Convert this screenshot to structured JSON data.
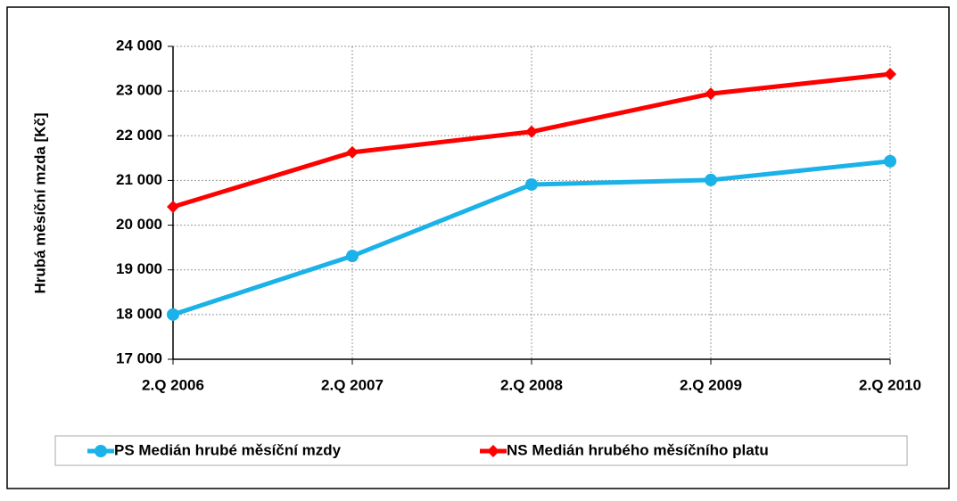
{
  "chart_data": {
    "type": "line",
    "y_label": "Hrubá měsíční mzda [Kč]",
    "categories": [
      "2.Q 2006",
      "2.Q 2007",
      "2.Q 2008",
      "2.Q 2009",
      "2.Q 2010"
    ],
    "series": [
      {
        "name": "PS Medián hrubé měsíční mzdy",
        "color": "#1ab2e8",
        "marker": "circle",
        "values": [
          18000,
          19310,
          20910,
          21010,
          21430
        ]
      },
      {
        "name": "NS Medián hrubého měsíčního platu",
        "color": "#ff0000",
        "marker": "diamond",
        "values": [
          20410,
          21630,
          22090,
          22940,
          23380
        ]
      }
    ],
    "ylim": [
      17000,
      24000
    ],
    "yticks": [
      {
        "value": 17000,
        "label": "17 000"
      },
      {
        "value": 18000,
        "label": "18 000"
      },
      {
        "value": 19000,
        "label": "19 000"
      },
      {
        "value": 20000,
        "label": "20 000"
      },
      {
        "value": 21000,
        "label": "21 000"
      },
      {
        "value": 22000,
        "label": "22 000"
      },
      {
        "value": 23000,
        "label": "23 000"
      },
      {
        "value": 24000,
        "label": "24 000"
      }
    ],
    "grid": true
  }
}
